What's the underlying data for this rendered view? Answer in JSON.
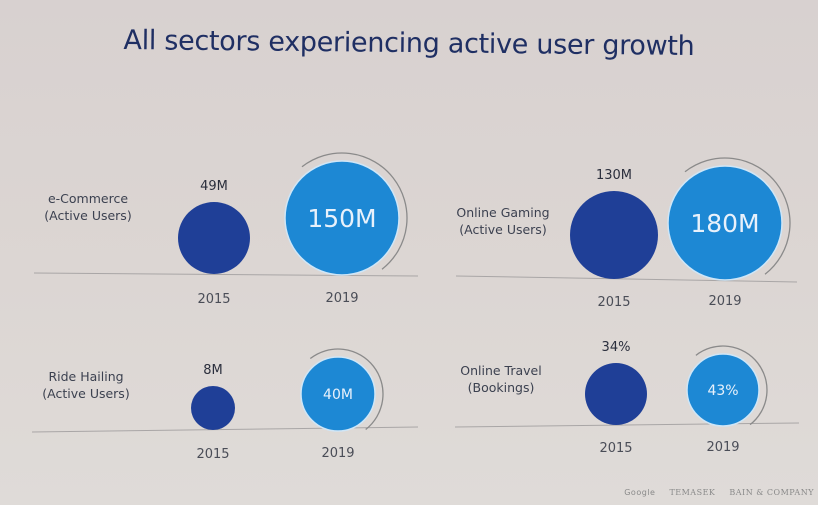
{
  "title": "All sectors experiencing active user growth",
  "chart_data": {
    "type": "bubble-comparison",
    "title": "All sectors experiencing active user growth",
    "colors": {
      "y2015": "#1f3f97",
      "y2019": "#1d88d4",
      "arc": "#8a8a8a",
      "baseline": "#a9a6a6"
    },
    "panels": [
      {
        "label_line1": "e-Commerce",
        "label_line2": "(Active Users)",
        "points": [
          {
            "year": "2015",
            "value": 49,
            "label": "49M"
          },
          {
            "year": "2019",
            "value": 150,
            "label": "150M"
          }
        ]
      },
      {
        "label_line1": "Online Gaming",
        "label_line2": "(Active Users)",
        "points": [
          {
            "year": "2015",
            "value": 130,
            "label": "130M"
          },
          {
            "year": "2019",
            "value": 180,
            "label": "180M"
          }
        ]
      },
      {
        "label_line1": "Ride Hailing",
        "label_line2": "(Active Users)",
        "points": [
          {
            "year": "2015",
            "value": 8,
            "label": "8M"
          },
          {
            "year": "2019",
            "value": 40,
            "label": "40M"
          }
        ]
      },
      {
        "label_line1": "Online Travel",
        "label_line2": "(Bookings)",
        "points": [
          {
            "year": "2015",
            "value": 34,
            "label": "34%"
          },
          {
            "year": "2019",
            "value": 43,
            "label": "43%"
          }
        ]
      }
    ]
  },
  "footer": {
    "logos": [
      "Google",
      "TEMASEK",
      "BAIN & COMPANY"
    ]
  }
}
